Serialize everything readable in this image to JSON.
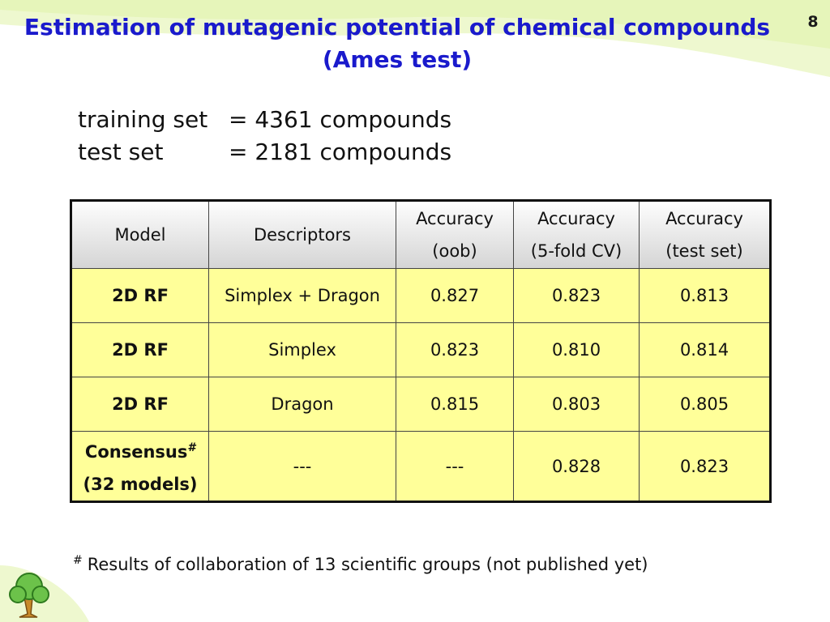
{
  "slide_number": "8",
  "title": {
    "line1": "Estimation of mutagenic potential of chemical compounds",
    "line2": "(Ames test)"
  },
  "info": {
    "training_label": "training set",
    "training_value": "= 4361 compounds",
    "test_label": "test set",
    "test_value": "= 2181 compounds"
  },
  "table": {
    "headers": {
      "model": "Model",
      "descriptors": "Descriptors",
      "acc_oob_1": "Accuracy",
      "acc_oob_2": "(oob)",
      "acc_cv_1": "Accuracy",
      "acc_cv_2": "(5-fold CV)",
      "acc_test_1": "Accuracy",
      "acc_test_2": "(test set)"
    },
    "rows": [
      {
        "model": "2D RF",
        "descriptors": "Simplex + Dragon",
        "oob": "0.827",
        "cv": "0.823",
        "test": "0.813"
      },
      {
        "model": "2D RF",
        "descriptors": "Simplex",
        "oob": "0.823",
        "cv": "0.810",
        "test": "0.814"
      },
      {
        "model": "2D RF",
        "descriptors": "Dragon",
        "oob": "0.815",
        "cv": "0.803",
        "test": "0.805"
      }
    ],
    "consensus": {
      "model_line1": "Consensus",
      "marker": "#",
      "model_line2": "(32 models)",
      "descriptors": "---",
      "oob": "---",
      "cv": "0.828",
      "test": "0.823"
    }
  },
  "footnote": {
    "marker": "#",
    "text": "Results of collaboration of 13 scientific groups (not published yet)"
  },
  "colors": {
    "title": "#1a1acc",
    "table_body": "#ffff99",
    "header_top": "#fdfdfd",
    "header_bottom": "#d4d4d4",
    "swoosh": "#e6f5b8"
  }
}
